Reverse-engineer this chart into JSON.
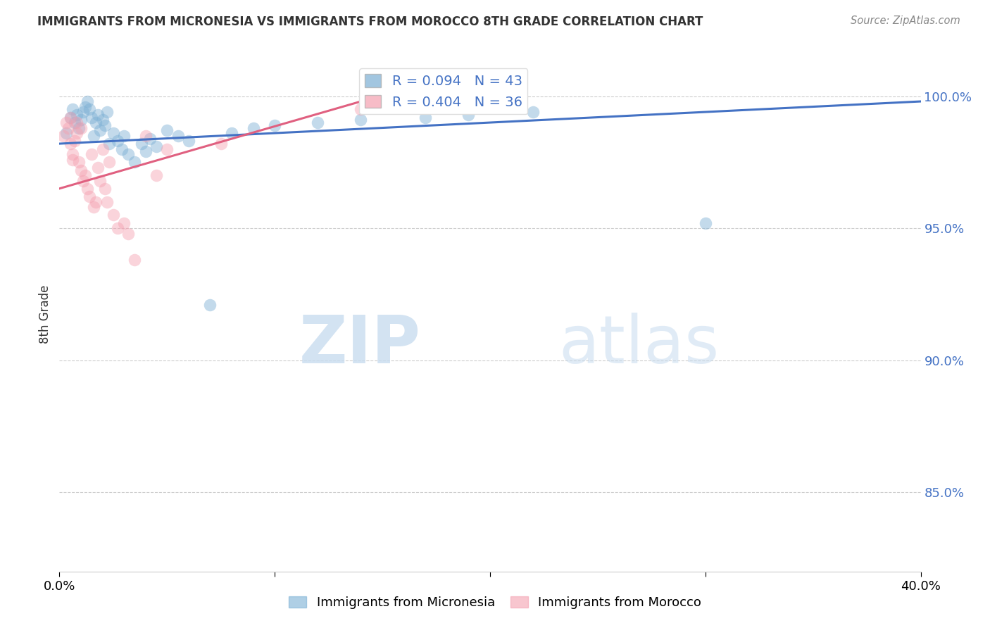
{
  "title": "IMMIGRANTS FROM MICRONESIA VS IMMIGRANTS FROM MOROCCO 8TH GRADE CORRELATION CHART",
  "source": "Source: ZipAtlas.com",
  "ylabel": "8th Grade",
  "yticks": [
    85.0,
    90.0,
    95.0,
    100.0
  ],
  "ytick_labels": [
    "85.0%",
    "90.0%",
    "95.0%",
    "100.0%"
  ],
  "xlim": [
    0.0,
    40.0
  ],
  "ylim": [
    82.0,
    101.5
  ],
  "blue_R": 0.094,
  "blue_N": 43,
  "pink_R": 0.404,
  "pink_N": 36,
  "blue_color": "#7BAFD4",
  "pink_color": "#F4A0B0",
  "blue_line_color": "#4472C4",
  "pink_line_color": "#E06080",
  "legend_label_blue": "Immigrants from Micronesia",
  "legend_label_pink": "Immigrants from Morocco",
  "watermark_zip": "ZIP",
  "watermark_atlas": "atlas",
  "blue_scatter_x": [
    0.3,
    0.5,
    0.6,
    0.7,
    0.8,
    0.9,
    1.0,
    1.1,
    1.2,
    1.3,
    1.4,
    1.5,
    1.6,
    1.7,
    1.8,
    1.9,
    2.0,
    2.1,
    2.2,
    2.3,
    2.5,
    2.7,
    2.9,
    3.0,
    3.2,
    3.5,
    3.8,
    4.0,
    4.2,
    4.5,
    5.0,
    5.5,
    6.0,
    7.0,
    8.0,
    9.0,
    10.0,
    12.0,
    14.0,
    17.0,
    19.0,
    22.0,
    30.0
  ],
  "blue_scatter_y": [
    98.6,
    99.2,
    99.5,
    99.0,
    99.3,
    98.8,
    99.1,
    99.4,
    99.6,
    99.8,
    99.5,
    99.2,
    98.5,
    99.0,
    99.3,
    98.7,
    99.1,
    98.9,
    99.4,
    98.2,
    98.6,
    98.3,
    98.0,
    98.5,
    97.8,
    97.5,
    98.2,
    97.9,
    98.4,
    98.1,
    98.7,
    98.5,
    98.3,
    92.1,
    98.6,
    98.8,
    98.9,
    99.0,
    99.1,
    99.2,
    99.3,
    99.4,
    95.2
  ],
  "pink_scatter_x": [
    0.2,
    0.3,
    0.4,
    0.5,
    0.6,
    0.7,
    0.8,
    0.9,
    1.0,
    1.1,
    1.2,
    1.3,
    1.4,
    1.5,
    1.6,
    1.7,
    1.8,
    1.9,
    2.0,
    2.1,
    2.2,
    2.3,
    2.5,
    2.7,
    3.0,
    3.2,
    3.5,
    4.0,
    4.5,
    5.0,
    0.5,
    0.6,
    0.8,
    1.0,
    7.5,
    14.0
  ],
  "pink_scatter_y": [
    98.5,
    99.0,
    98.8,
    99.2,
    97.8,
    98.3,
    98.6,
    97.5,
    97.2,
    96.8,
    97.0,
    96.5,
    96.2,
    97.8,
    95.8,
    96.0,
    97.3,
    96.8,
    98.0,
    96.5,
    96.0,
    97.5,
    95.5,
    95.0,
    95.2,
    94.8,
    93.8,
    98.5,
    97.0,
    98.0,
    98.2,
    97.6,
    99.0,
    98.8,
    98.2,
    99.5
  ],
  "blue_line_x0": 0.0,
  "blue_line_x1": 40.0,
  "blue_line_y0": 98.2,
  "blue_line_y1": 99.8,
  "pink_line_x0": 0.0,
  "pink_line_x1": 14.0,
  "pink_line_y0": 96.5,
  "pink_line_y1": 99.8
}
